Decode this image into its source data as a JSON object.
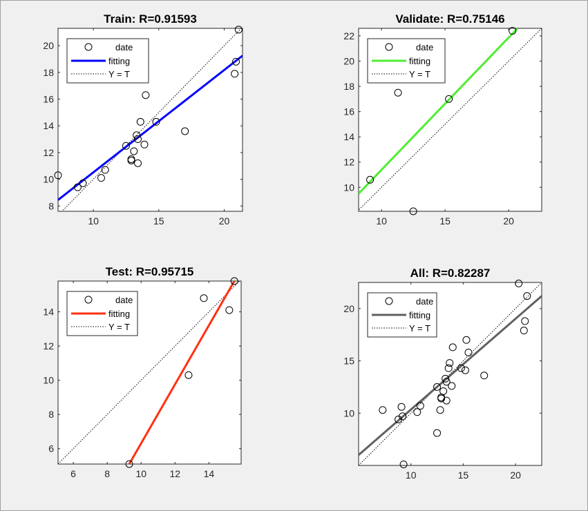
{
  "chart_data": [
    {
      "type": "scatter",
      "title": "Train: R=0.91593",
      "legend": [
        "date",
        "fitting",
        "Y = T"
      ],
      "legend_position": "top-left",
      "xlim": [
        7.3,
        21.4
      ],
      "ylim": [
        7.6,
        21.3
      ],
      "xticks": [
        10,
        15,
        20
      ],
      "yticks": [
        8,
        10,
        12,
        14,
        16,
        18,
        20
      ],
      "fit_color": "#0000ff",
      "fit_line": [
        [
          7.3,
          8.45
        ],
        [
          21.4,
          19.25
        ]
      ],
      "points": [
        {
          "x": 7.3,
          "y": 10.3
        },
        {
          "x": 8.8,
          "y": 9.4
        },
        {
          "x": 9.2,
          "y": 9.7
        },
        {
          "x": 10.6,
          "y": 10.1
        },
        {
          "x": 10.9,
          "y": 10.7
        },
        {
          "x": 12.5,
          "y": 12.5
        },
        {
          "x": 12.9,
          "y": 11.5
        },
        {
          "x": 12.9,
          "y": 11.4
        },
        {
          "x": 13.1,
          "y": 12.1
        },
        {
          "x": 13.3,
          "y": 13.3
        },
        {
          "x": 13.4,
          "y": 13.0
        },
        {
          "x": 13.4,
          "y": 11.2
        },
        {
          "x": 13.6,
          "y": 14.3
        },
        {
          "x": 13.9,
          "y": 12.6
        },
        {
          "x": 14.0,
          "y": 16.3
        },
        {
          "x": 14.8,
          "y": 14.3
        },
        {
          "x": 17.0,
          "y": 13.6
        },
        {
          "x": 20.8,
          "y": 17.9
        },
        {
          "x": 20.9,
          "y": 18.8
        },
        {
          "x": 21.1,
          "y": 21.2
        }
      ]
    },
    {
      "type": "scatter",
      "title": "Validate:  R=0.75146",
      "legend": [
        "date",
        "fitting",
        "Y = T"
      ],
      "legend_position": "top-left",
      "xlim": [
        8.2,
        22.6
      ],
      "ylim": [
        8.1,
        22.6
      ],
      "xticks": [
        10,
        15,
        20
      ],
      "yticks": [
        10,
        12,
        14,
        16,
        18,
        20,
        22
      ],
      "fit_color": "#4ded30",
      "fit_line": [
        [
          8.2,
          9.5
        ],
        [
          20.7,
          22.6
        ]
      ],
      "points": [
        {
          "x": 9.1,
          "y": 10.6
        },
        {
          "x": 11.3,
          "y": 17.5
        },
        {
          "x": 12.5,
          "y": 8.1
        },
        {
          "x": 15.3,
          "y": 17.0
        },
        {
          "x": 20.3,
          "y": 22.4
        }
      ]
    },
    {
      "type": "scatter",
      "title": "Test: R=0.95715",
      "legend": [
        "date",
        "fitting",
        "Y = T"
      ],
      "legend_position": "top-left",
      "xlim": [
        5.1,
        15.9
      ],
      "ylim": [
        5.1,
        15.8
      ],
      "xticks": [
        6,
        8,
        10,
        12,
        14
      ],
      "yticks": [
        6,
        8,
        10,
        12,
        14
      ],
      "fit_color": "#ff3010",
      "fit_line": [
        [
          9.3,
          5.1
        ],
        [
          15.5,
          15.8
        ]
      ],
      "points": [
        {
          "x": 9.3,
          "y": 5.1
        },
        {
          "x": 12.8,
          "y": 10.3
        },
        {
          "x": 13.7,
          "y": 14.8
        },
        {
          "x": 15.2,
          "y": 14.1
        },
        {
          "x": 15.5,
          "y": 15.8
        }
      ]
    },
    {
      "type": "scatter",
      "title": "All: R=0.82287",
      "legend": [
        "date",
        "fitting",
        "Y = T"
      ],
      "legend_position": "top-left",
      "xlim": [
        5.0,
        22.5
      ],
      "ylim": [
        5.0,
        22.5
      ],
      "xticks": [
        10,
        15,
        20
      ],
      "yticks": [
        10,
        15,
        20
      ],
      "fit_color": "#606060",
      "fit_line": [
        [
          5.0,
          6.0
        ],
        [
          22.5,
          21.2
        ]
      ],
      "points": [
        {
          "x": 7.3,
          "y": 10.3
        },
        {
          "x": 8.8,
          "y": 9.4
        },
        {
          "x": 9.1,
          "y": 10.6
        },
        {
          "x": 9.2,
          "y": 9.7
        },
        {
          "x": 9.3,
          "y": 5.1
        },
        {
          "x": 10.6,
          "y": 10.1
        },
        {
          "x": 10.9,
          "y": 10.7
        },
        {
          "x": 12.5,
          "y": 12.5
        },
        {
          "x": 12.5,
          "y": 8.1
        },
        {
          "x": 12.8,
          "y": 10.3
        },
        {
          "x": 12.9,
          "y": 11.5
        },
        {
          "x": 12.9,
          "y": 11.4
        },
        {
          "x": 13.1,
          "y": 12.1
        },
        {
          "x": 13.3,
          "y": 13.3
        },
        {
          "x": 13.4,
          "y": 13.0
        },
        {
          "x": 13.4,
          "y": 11.2
        },
        {
          "x": 13.6,
          "y": 14.3
        },
        {
          "x": 13.7,
          "y": 14.8
        },
        {
          "x": 13.9,
          "y": 12.6
        },
        {
          "x": 14.0,
          "y": 16.3
        },
        {
          "x": 14.8,
          "y": 14.3
        },
        {
          "x": 15.2,
          "y": 14.1
        },
        {
          "x": 15.3,
          "y": 17.0
        },
        {
          "x": 15.5,
          "y": 15.8
        },
        {
          "x": 17.0,
          "y": 13.6
        },
        {
          "x": 20.3,
          "y": 22.4
        },
        {
          "x": 20.8,
          "y": 17.9
        },
        {
          "x": 20.9,
          "y": 18.8
        },
        {
          "x": 21.1,
          "y": 21.2
        }
      ]
    }
  ]
}
